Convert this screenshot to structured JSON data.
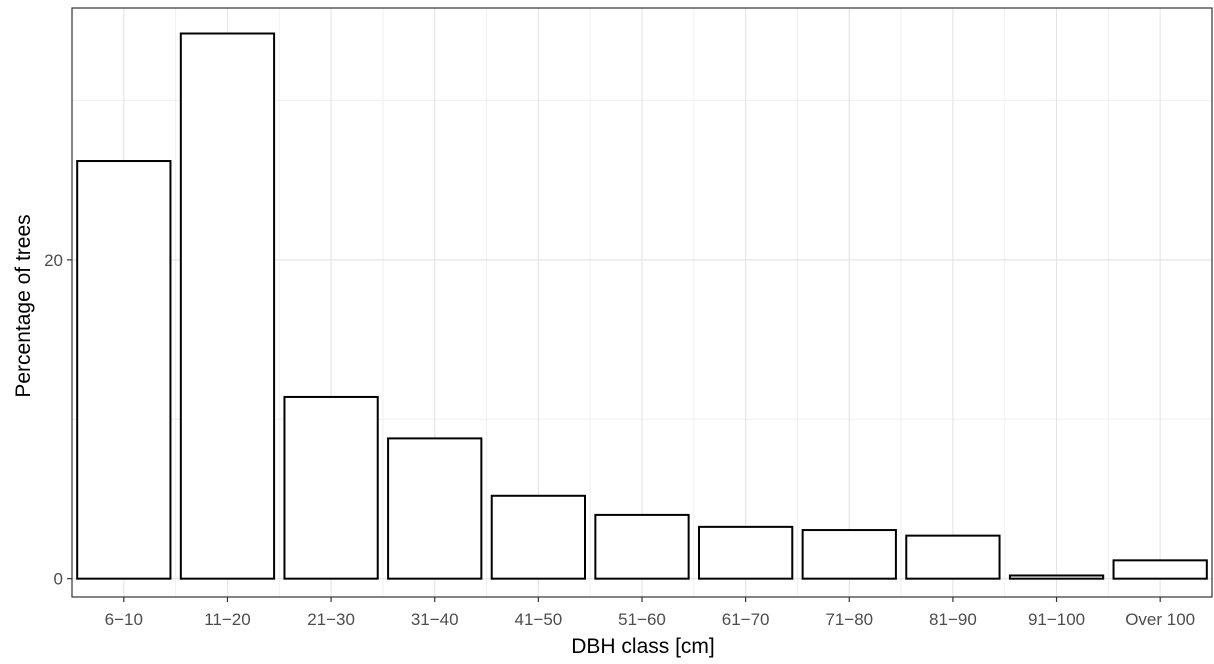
{
  "chart_data": {
    "type": "bar",
    "xlabel": "DBH class [cm]",
    "ylabel": "Percentage of trees",
    "categories": [
      "6−10",
      "11−20",
      "21−30",
      "31−40",
      "41−50",
      "51−60",
      "61−70",
      "71−80",
      "81−90",
      "91−100",
      "Over 100"
    ],
    "values": [
      26.2,
      34.2,
      11.4,
      8.8,
      5.2,
      4.0,
      3.25,
      3.05,
      2.7,
      0.2,
      1.15
    ],
    "ylim": [
      -1.15,
      35.8
    ],
    "y_ticks": [
      0,
      20
    ],
    "y_minor_ticks": [
      10,
      30
    ],
    "grid": true,
    "theme": "bw",
    "bar_fill": "#ffffff",
    "bar_outline": "#000000"
  }
}
